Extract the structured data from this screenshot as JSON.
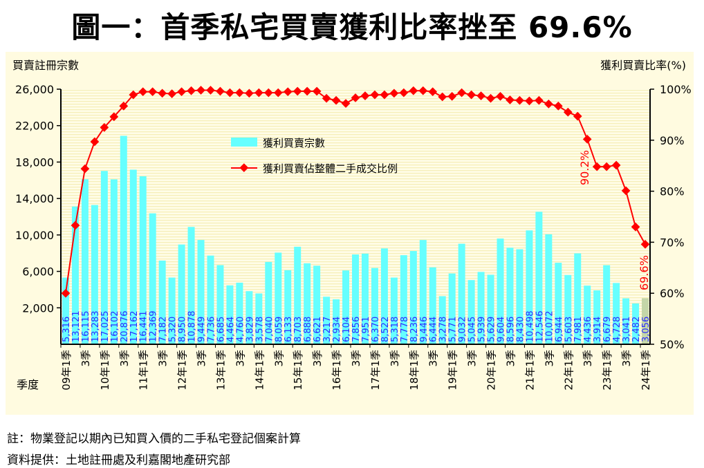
{
  "title": "圖一：首季私宅買賣獲利比率挫至 69.6%",
  "notes": [
    "註：物業登記以期內已知買入價的二手私宅登記個案計算",
    "資料提供：土地註冊處及利嘉閣地產研究部"
  ],
  "chart_data": {
    "type": "bar+line",
    "left_axis_title": "買賣註冊宗數",
    "right_axis_title": "獲利買賣比率(%)",
    "x_axis_title": "季度",
    "left_ylim": [
      -2000,
      26000
    ],
    "left_ticks": [
      "2,000",
      "6,000",
      "10,000",
      "14,000",
      "18,000",
      "22,000",
      "26,000"
    ],
    "left_tick_values": [
      2000,
      6000,
      10000,
      14000,
      18000,
      22000,
      26000
    ],
    "right_ylim": [
      50,
      100
    ],
    "right_ticks": [
      "50%",
      "60%",
      "70%",
      "80%",
      "90%",
      "100%"
    ],
    "right_tick_values": [
      50,
      60,
      70,
      80,
      90,
      100
    ],
    "categories": [
      "09年1季",
      "3季",
      "3季",
      "3季",
      "10年1季",
      "3季",
      "3季",
      "3季",
      "11年1季",
      "3季",
      "3季",
      "3季",
      "12年1季",
      "3季",
      "3季",
      "3季",
      "13年1季",
      "3季",
      "3季",
      "3季",
      "14年1季",
      "3季",
      "3季",
      "3季",
      "15年1季",
      "3季",
      "3季",
      "3季",
      "16年1季",
      "3季",
      "3季",
      "3季",
      "17年1季",
      "3季",
      "3季",
      "3季",
      "18年1季",
      "3季",
      "3季",
      "3季",
      "19年1季",
      "3季",
      "3季",
      "3季",
      "20年1季",
      "3季",
      "3季",
      "3季",
      "21年1季",
      "3季",
      "3季",
      "3季",
      "22年1季",
      "3季",
      "3季",
      "3季",
      "23年1季",
      "3季",
      "3季",
      "3季",
      "24年1季"
    ],
    "series": [
      {
        "name": "獲利買賣宗數",
        "type": "bar",
        "color": "#66ffff",
        "highlight_color": "#c4d6a8",
        "values": [
          5316,
          13121,
          16115,
          13283,
          17025,
          16102,
          20876,
          17162,
          16441,
          12369,
          7182,
          5320,
          8950,
          10878,
          9449,
          7736,
          6685,
          4464,
          4760,
          3829,
          3578,
          7040,
          8059,
          6133,
          8703,
          6888,
          6621,
          3217,
          2934,
          6104,
          7856,
          7951,
          6370,
          8522,
          5318,
          7778,
          8236,
          9446,
          6444,
          3278,
          5771,
          9032,
          5045,
          5939,
          5629,
          9604,
          8596,
          8430,
          10498,
          12546,
          10072,
          6944,
          5603,
          7981,
          4436,
          3914,
          6679,
          4728,
          3041,
          2482,
          3056
        ],
        "labels": [
          "5,316",
          "13,121",
          "16,115",
          "13,283",
          "17,025",
          "16,102",
          "20,876",
          "17,162",
          "16,441",
          "12,369",
          "7,182",
          "5,320",
          "8,950",
          "10,878",
          "9,449",
          "7,736",
          "6,685",
          "4,464",
          "4,760",
          "3,829",
          "3,578",
          "7,040",
          "8,059",
          "6,133",
          "8,703",
          "6,888",
          "6,621",
          "3,217",
          "2,934",
          "6,104",
          "7,856",
          "7,951",
          "6,370",
          "8,522",
          "5,318",
          "7,778",
          "8,236",
          "9,446",
          "6,444",
          "3,278",
          "5,771",
          "9,032",
          "5,045",
          "5,939",
          "5,629",
          "9,604",
          "8,596",
          "8,430",
          "10,498",
          "12,546",
          "10,072",
          "6,944",
          "5,603",
          "7,981",
          "4,436",
          "3,914",
          "6,679",
          "4,728",
          "3,041",
          "2,482",
          "3,056"
        ]
      },
      {
        "name": "獲利買賣佔整體二手成交比例",
        "type": "line",
        "color": "#ff0000",
        "values": [
          60.0,
          73.3,
          84.4,
          89.7,
          92.5,
          94.6,
          96.7,
          98.9,
          99.5,
          99.5,
          99.2,
          99.1,
          99.5,
          99.7,
          99.8,
          99.8,
          99.6,
          99.3,
          99.3,
          99.2,
          99.3,
          99.3,
          99.3,
          99.5,
          99.6,
          99.6,
          99.6,
          98.2,
          97.8,
          97.2,
          98.3,
          98.7,
          98.9,
          98.9,
          99.2,
          99.3,
          99.7,
          99.7,
          99.5,
          98.5,
          98.6,
          99.3,
          98.9,
          98.7,
          98.2,
          98.6,
          97.9,
          97.8,
          97.7,
          97.8,
          97.1,
          96.7,
          95.5,
          94.7,
          90.2,
          84.8,
          84.8,
          85.1,
          80.1,
          73.0,
          69.6
        ]
      }
    ],
    "annotations": [
      "90.2%",
      "69.6%"
    ],
    "legend_placement": "top-center",
    "grid": false
  }
}
